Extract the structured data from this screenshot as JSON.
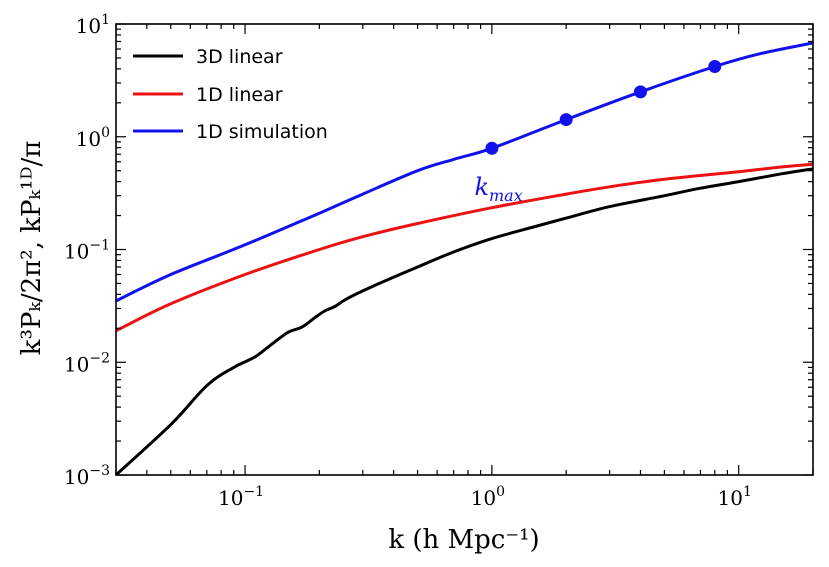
{
  "chart_data": {
    "type": "line",
    "title": "",
    "xlabel": "k (h Mpc⁻¹)",
    "ylabel": "k³Pₖ/2π²,   kPₖ¹ᴰ/π",
    "xscale": "log",
    "yscale": "log",
    "xlim": [
      0.03,
      20
    ],
    "ylim": [
      0.001,
      10
    ],
    "x_ticks": [
      {
        "value": 0.1,
        "base": "10",
        "exp": "−1"
      },
      {
        "value": 1,
        "base": "10",
        "exp": "0"
      },
      {
        "value": 10,
        "base": "10",
        "exp": "1"
      }
    ],
    "y_ticks": [
      {
        "value": 0.001,
        "base": "10",
        "exp": "−3"
      },
      {
        "value": 0.01,
        "base": "10",
        "exp": "−2"
      },
      {
        "value": 0.1,
        "base": "10",
        "exp": "−1"
      },
      {
        "value": 1,
        "base": "10",
        "exp": "0"
      },
      {
        "value": 10,
        "base": "10",
        "exp": "1"
      }
    ],
    "legend_position": "top-left",
    "grid": false,
    "series": [
      {
        "name": "3D linear",
        "color": "#000000",
        "x": [
          0.03,
          0.05,
          0.07,
          0.09,
          0.11,
          0.13,
          0.15,
          0.17,
          0.19,
          0.21,
          0.23,
          0.25,
          0.28,
          0.35,
          0.5,
          0.7,
          1,
          1.5,
          2,
          3,
          5,
          7,
          10,
          15,
          20
        ],
        "y": [
          0.001,
          0.0028,
          0.0062,
          0.009,
          0.0112,
          0.0148,
          0.0185,
          0.0205,
          0.0245,
          0.0285,
          0.031,
          0.035,
          0.04,
          0.05,
          0.07,
          0.095,
          0.125,
          0.16,
          0.19,
          0.24,
          0.3,
          0.35,
          0.4,
          0.47,
          0.52
        ]
      },
      {
        "name": "1D linear",
        "color": "#ee1111",
        "x": [
          0.03,
          0.05,
          0.1,
          0.2,
          0.3,
          0.5,
          1,
          2,
          3,
          5,
          10,
          15,
          20
        ],
        "y": [
          0.019,
          0.033,
          0.06,
          0.1,
          0.13,
          0.17,
          0.235,
          0.31,
          0.36,
          0.42,
          0.49,
          0.54,
          0.57
        ]
      },
      {
        "name": "1D simulation",
        "color": "#1111ee",
        "x": [
          0.03,
          0.05,
          0.1,
          0.2,
          0.3,
          0.5,
          0.7,
          1,
          2,
          4,
          8,
          12,
          20
        ],
        "y": [
          0.035,
          0.06,
          0.11,
          0.21,
          0.31,
          0.5,
          0.63,
          0.79,
          1.42,
          2.5,
          4.2,
          5.4,
          6.8
        ]
      }
    ],
    "markers": {
      "series": "1D simulation",
      "color": "#1111ee",
      "x": [
        1,
        2,
        4,
        8
      ],
      "y": [
        0.79,
        1.42,
        2.5,
        4.2
      ]
    },
    "annotations": [
      {
        "text": "k",
        "subscript": "max",
        "x": 0.85,
        "y": 0.36,
        "color": "#1111ee"
      }
    ]
  }
}
